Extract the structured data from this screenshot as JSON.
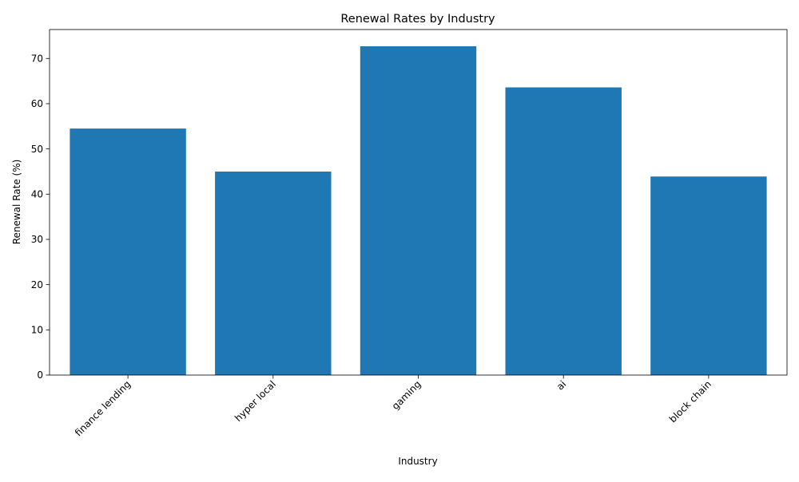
{
  "chart_data": {
    "type": "bar",
    "title": "Renewal Rates by Industry",
    "xlabel": "Industry",
    "ylabel": "Renewal Rate (%)",
    "categories": [
      "finance lending",
      "hyper local",
      "gaming",
      "ai",
      "block chain"
    ],
    "values": [
      54.5,
      45.0,
      72.7,
      63.6,
      43.9
    ],
    "ylim": [
      0,
      76.4
    ],
    "yticks": [
      0,
      10,
      20,
      30,
      40,
      50,
      60,
      70
    ],
    "bar_color": "#1f77b4",
    "grid": false,
    "legend": "none",
    "xtick_rotation": 45
  }
}
